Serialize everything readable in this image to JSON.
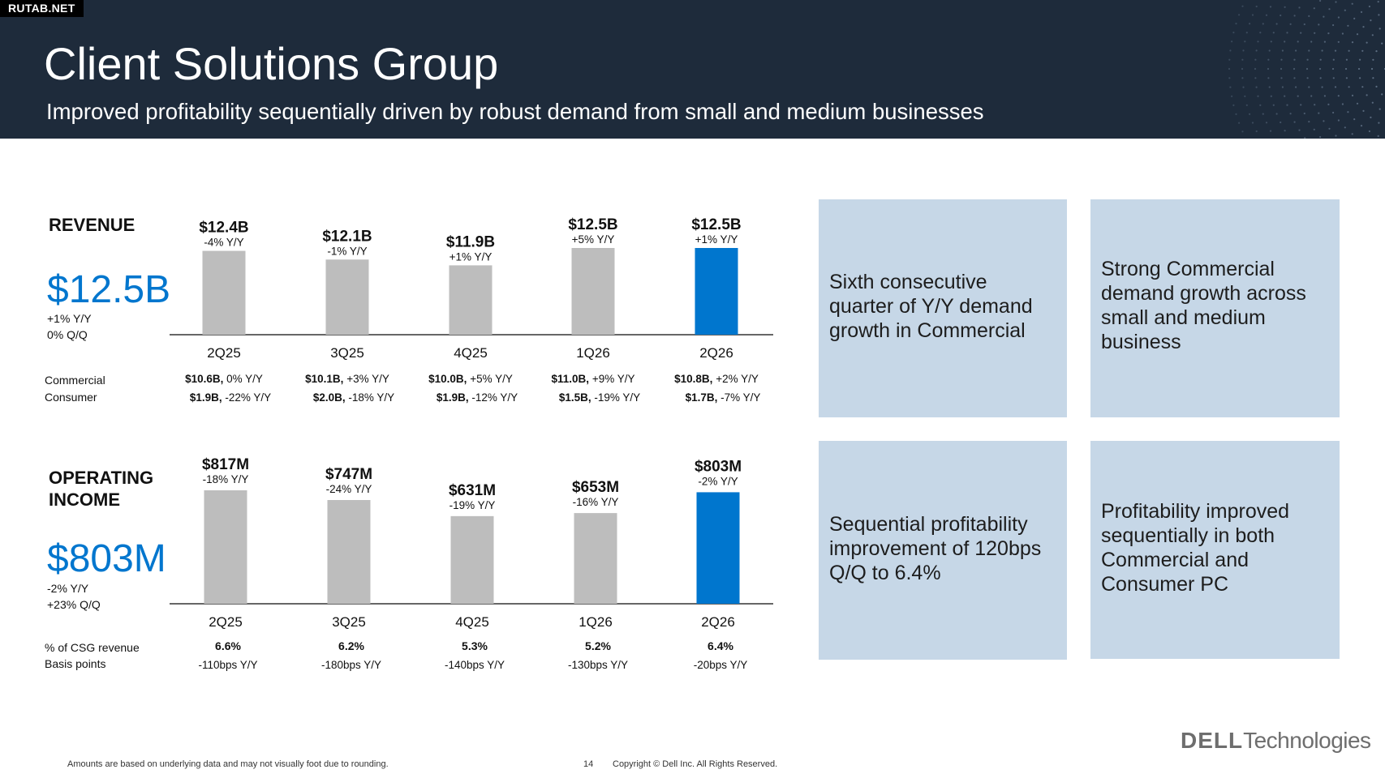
{
  "watermark": "RUTAB.NET",
  "header": {
    "title": "Client Solutions Group",
    "subtitle": "Improved profitability sequentially driven by robust demand from small and medium businesses"
  },
  "revenue": {
    "heading": "REVENUE",
    "big_value": "$12.5B",
    "yy": "+1% Y/Y",
    "qq": "0% Q/Q",
    "row_labels": [
      "Commercial",
      "Consumer"
    ]
  },
  "operating_income": {
    "heading_line1": "OPERATING",
    "heading_line2": "INCOME",
    "big_value": "$803M",
    "yy": "-2% Y/Y",
    "qq": "+23% Q/Q",
    "row_labels": [
      "% of CSG revenue",
      "Basis points"
    ]
  },
  "chart_data": [
    {
      "type": "bar",
      "categories": [
        "2Q25",
        "3Q25",
        "4Q25",
        "1Q26",
        "2Q26"
      ],
      "values": [
        12.4,
        12.1,
        11.9,
        12.5,
        12.5
      ],
      "value_labels": [
        "$12.4B",
        "$12.1B",
        "$11.9B",
        "$12.5B",
        "$12.5B"
      ],
      "change_labels": [
        "-4% Y/Y",
        "-1% Y/Y",
        "+1% Y/Y",
        "+5% Y/Y",
        "+1% Y/Y"
      ],
      "commercial": [
        {
          "value": "$10.6B,",
          "change": "0% Y/Y"
        },
        {
          "value": "$10.1B,",
          "change": "+3% Y/Y"
        },
        {
          "value": "$10.0B,",
          "change": "+5% Y/Y"
        },
        {
          "value": "$11.0B,",
          "change": "+9% Y/Y"
        },
        {
          "value": "$10.8B,",
          "change": "+2% Y/Y"
        }
      ],
      "consumer": [
        {
          "value": "$1.9B,",
          "change": "-22% Y/Y"
        },
        {
          "value": "$2.0B,",
          "change": "-18% Y/Y"
        },
        {
          "value": "$1.9B,",
          "change": "-12% Y/Y"
        },
        {
          "value": "$1.5B,",
          "change": "-19% Y/Y"
        },
        {
          "value": "$1.7B,",
          "change": "-7% Y/Y"
        }
      ],
      "highlight_index": 4,
      "colors": {
        "default": "#bdbdbd",
        "highlight": "#0076ce"
      }
    },
    {
      "type": "bar",
      "categories": [
        "2Q25",
        "3Q25",
        "4Q25",
        "1Q26",
        "2Q26"
      ],
      "values": [
        817,
        747,
        631,
        653,
        803
      ],
      "value_labels": [
        "$817M",
        "$747M",
        "$631M",
        "$653M",
        "$803M"
      ],
      "change_labels": [
        "-18% Y/Y",
        "-24% Y/Y",
        "-19% Y/Y",
        "-16% Y/Y",
        "-2% Y/Y"
      ],
      "pct_of_revenue": [
        "6.6%",
        "6.2%",
        "5.3%",
        "5.2%",
        "6.4%"
      ],
      "basis_points": [
        "-110bps Y/Y",
        "-180bps Y/Y",
        "-140bps Y/Y",
        "-130bps Y/Y",
        "-20bps Y/Y"
      ],
      "highlight_index": 4,
      "colors": {
        "default": "#bdbdbd",
        "highlight": "#0076ce"
      }
    }
  ],
  "boxes": [
    {
      "lines": [
        "Sixth consecutive",
        "quarter of Y/Y demand",
        "growth in Commercial"
      ]
    },
    {
      "lines": [
        "Strong Commercial",
        "demand growth across",
        "small and medium",
        "business"
      ]
    },
    {
      "lines": [
        "Sequential profitability",
        "improvement of 120bps",
        "Q/Q to 6.4%"
      ]
    },
    {
      "lines": [
        "Profitability improved",
        "sequentially in both",
        "Commercial and",
        "Consumer PC"
      ]
    }
  ],
  "footer": {
    "note": "Amounts are based on underlying data and may not visually foot due to rounding.",
    "page": "14",
    "copyright": "Copyright © Dell Inc. All Rights Reserved."
  },
  "logo": {
    "brand": "DELL",
    "suffix": "Technologies"
  }
}
